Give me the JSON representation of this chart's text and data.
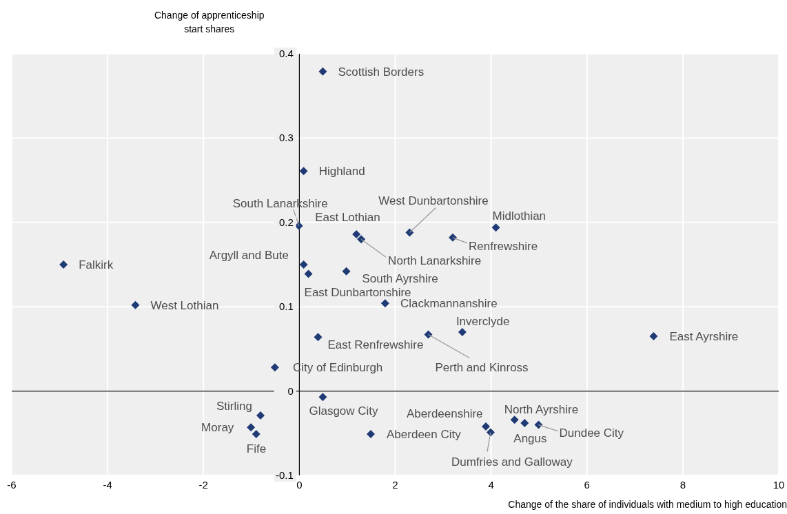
{
  "chart_data": {
    "type": "scatter",
    "xlabel": "Change of the share of individuals with medium to high education",
    "ylabel": "Change of apprenticeship start shares",
    "xlim": [
      -6,
      10
    ],
    "xticks": [
      -6,
      -4,
      -2,
      0,
      2,
      4,
      6,
      8,
      10
    ],
    "ylim": [
      -0.1,
      0.4
    ],
    "yticks": [
      -0.1,
      0,
      0.1,
      0.2,
      0.3,
      0.4
    ],
    "grid": true,
    "marker": "diamond",
    "x": [
      0.49,
      0.09,
      -0.01,
      1.19,
      1.29,
      2.3,
      4.1,
      3.2,
      -4.92,
      0.09,
      0.19,
      0.98,
      -3.42,
      1.79,
      3.4,
      2.69,
      7.39,
      0.39,
      -0.51,
      0.49,
      -0.81,
      -1.01,
      -0.9,
      1.49,
      3.89,
      4.7,
      4.49,
      3.99,
      4.99
    ],
    "series": [
      {
        "color": "#1f3a75",
        "values": [
          0.379,
          0.261,
          0.196,
          0.186,
          0.18,
          0.188,
          0.194,
          0.182,
          0.15,
          0.15,
          0.139,
          0.142,
          0.102,
          0.104,
          0.07,
          0.067,
          0.065,
          0.064,
          0.028,
          -0.007,
          -0.029,
          -0.043,
          -0.051,
          -0.051,
          -0.042,
          -0.038,
          -0.034,
          -0.049,
          -0.04
        ]
      }
    ],
    "annotations": [
      {
        "text": "Scottish Borders",
        "x": 0.49,
        "y": 0.379
      },
      {
        "text": "Highland",
        "x": 0.09,
        "y": 0.261
      },
      {
        "text": "South Lanarkshire",
        "x": -0.01,
        "y": 0.196
      },
      {
        "text": "East Lothian",
        "x": 1.19,
        "y": 0.186
      },
      {
        "text": "North Lanarkshire",
        "x": 1.29,
        "y": 0.18
      },
      {
        "text": "West Dunbartonshire",
        "x": 2.3,
        "y": 0.188
      },
      {
        "text": "Midlothian",
        "x": 4.1,
        "y": 0.194
      },
      {
        "text": "Renfrewshire",
        "x": 3.2,
        "y": 0.182
      },
      {
        "text": "Falkirk",
        "x": -4.92,
        "y": 0.15
      },
      {
        "text": "Argyll and Bute",
        "x": 0.09,
        "y": 0.15
      },
      {
        "text": "East Dunbartonshire",
        "x": 0.19,
        "y": 0.139
      },
      {
        "text": "South Ayrshire",
        "x": 0.98,
        "y": 0.142
      },
      {
        "text": "West Lothian",
        "x": -3.42,
        "y": 0.102
      },
      {
        "text": "Clackmannanshire",
        "x": 1.79,
        "y": 0.104
      },
      {
        "text": "Inverclyde",
        "x": 3.4,
        "y": 0.07
      },
      {
        "text": "Perth and Kinross",
        "x": 2.69,
        "y": 0.067
      },
      {
        "text": "East Ayrshire",
        "x": 7.39,
        "y": 0.065
      },
      {
        "text": "East Renfrewshire",
        "x": 0.39,
        "y": 0.064
      },
      {
        "text": "City of Edinburgh",
        "x": -0.51,
        "y": 0.028
      },
      {
        "text": "Glasgow City",
        "x": 0.49,
        "y": -0.007
      },
      {
        "text": "Stirling",
        "x": -0.81,
        "y": -0.029
      },
      {
        "text": "Moray",
        "x": -1.01,
        "y": -0.043
      },
      {
        "text": "Fife",
        "x": -0.9,
        "y": -0.051
      },
      {
        "text": "Aberdeen City",
        "x": 1.49,
        "y": -0.051
      },
      {
        "text": "Aberdeenshire",
        "x": 3.89,
        "y": -0.042
      },
      {
        "text": "Angus",
        "x": 4.7,
        "y": -0.038
      },
      {
        "text": "North Ayrshire",
        "x": 4.49,
        "y": -0.034
      },
      {
        "text": "Dumfries and Galloway",
        "x": 3.99,
        "y": -0.049
      },
      {
        "text": "Dundee City",
        "x": 4.99,
        "y": -0.04
      }
    ]
  }
}
